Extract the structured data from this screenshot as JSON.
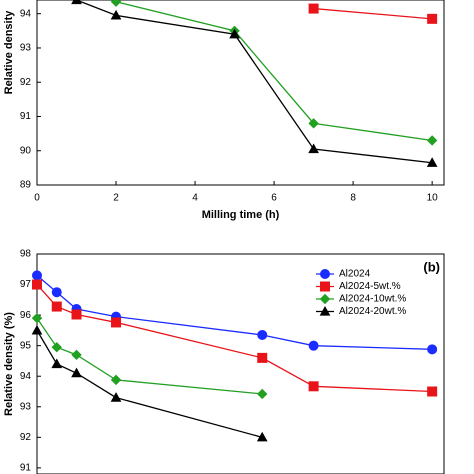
{
  "chart_data": [
    {
      "type": "line",
      "x_label": "Milling time (h)",
      "y_label": "Relative density",
      "x": [
        1,
        2,
        5,
        7,
        10
      ],
      "xlim": [
        0,
        10.3
      ],
      "xticks": [
        0,
        2,
        4,
        6,
        8,
        10
      ],
      "ylim": [
        89,
        94.4
      ],
      "yticks": [
        89,
        90,
        91,
        92,
        93,
        94
      ],
      "series": [
        {
          "name": "Al2024-5wt.%",
          "color": "#e8141a",
          "marker": "square",
          "values": [
            null,
            null,
            null,
            94.15,
            93.85
          ]
        },
        {
          "name": "Al2024-10wt.%",
          "color": "#22a022",
          "marker": "diamond",
          "values": [
            null,
            94.35,
            93.5,
            90.8,
            90.3
          ]
        },
        {
          "name": "Al2024-20wt.%",
          "color": "#000000",
          "marker": "triangle",
          "values": [
            94.4,
            93.95,
            93.4,
            90.05,
            89.65
          ]
        }
      ]
    },
    {
      "type": "line",
      "y_label": "Relative density (%)",
      "annotation": "(b)",
      "legend": "upper right",
      "x": [
        0,
        0.5,
        1,
        2,
        5.7,
        7,
        10
      ],
      "xlim": [
        0,
        10.3
      ],
      "ylim": [
        90.8,
        98
      ],
      "yticks": [
        91,
        92,
        93,
        94,
        95,
        96,
        97,
        98
      ],
      "series": [
        {
          "name": "Al2024",
          "color": "#1a2cff",
          "marker": "circle",
          "values": [
            97.3,
            96.75,
            96.2,
            95.95,
            95.35,
            95.0,
            94.88
          ]
        },
        {
          "name": "Al2024-5wt.%",
          "color": "#e8141a",
          "marker": "square",
          "values": [
            97.0,
            96.28,
            96.02,
            95.76,
            94.6,
            93.67,
            93.5
          ]
        },
        {
          "name": "Al2024-10wt.%",
          "color": "#22a022",
          "marker": "diamond",
          "values": [
            95.9,
            94.95,
            94.7,
            93.88,
            93.42,
            null,
            null
          ]
        },
        {
          "name": "Al2024-20wt.%",
          "color": "#000000",
          "marker": "triangle",
          "values": [
            95.5,
            94.4,
            94.1,
            93.3,
            92.0,
            null,
            null
          ]
        }
      ]
    }
  ]
}
